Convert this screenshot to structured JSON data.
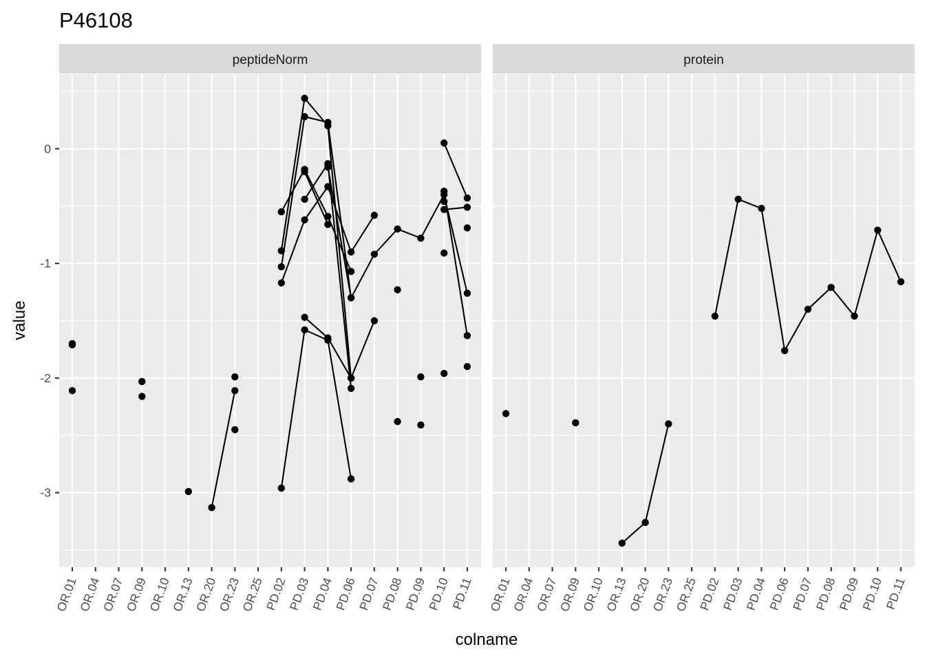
{
  "chart_data": {
    "type": "line",
    "title": "P46108",
    "xlabel": "colname",
    "ylabel": "value",
    "categories": [
      "OR.01",
      "OR.04",
      "OR.07",
      "OR.09",
      "OR.10",
      "OR.13",
      "OR.20",
      "OR.23",
      "OR.25",
      "PD.02",
      "PD.03",
      "PD.04",
      "PD.06",
      "PD.07",
      "PD.08",
      "PD.09",
      "PD.10",
      "PD.11"
    ],
    "yticks": [
      0,
      -1,
      -2,
      -3
    ],
    "ylim": [
      -3.65,
      0.65
    ],
    "grid": true,
    "facets": [
      {
        "name": "peptideNorm",
        "lines": [
          [
            [
              "PD.02",
              -0.55
            ],
            [
              "PD.03",
              -0.18
            ],
            [
              "PD.04",
              -0.59
            ],
            [
              "PD.06",
              -1.07
            ]
          ],
          [
            [
              "PD.02",
              -0.89
            ],
            [
              "PD.03",
              0.44
            ],
            [
              "PD.04",
              0.2
            ],
            [
              "PD.06",
              -2.0
            ]
          ],
          [
            [
              "PD.02",
              -1.03
            ],
            [
              "PD.03",
              0.28
            ],
            [
              "PD.04",
              0.23
            ],
            [
              "PD.06",
              -1.3
            ],
            [
              "PD.07",
              -0.92
            ],
            [
              "PD.08",
              -0.7
            ],
            [
              "PD.09",
              -0.78
            ],
            [
              "PD.10",
              -0.4
            ],
            [
              "PD.11",
              -1.26
            ]
          ],
          [
            [
              "PD.02",
              -1.17
            ],
            [
              "PD.03",
              -0.62
            ],
            [
              "PD.04",
              -0.33
            ],
            [
              "PD.06",
              -0.9
            ],
            [
              "PD.07",
              -0.58
            ]
          ],
          [
            [
              "PD.02",
              -2.96
            ],
            [
              "PD.03",
              -1.58
            ],
            [
              "PD.04",
              -1.67
            ],
            [
              "PD.06",
              -2.88
            ]
          ],
          [
            [
              "PD.03",
              -1.47
            ],
            [
              "PD.04",
              -1.65
            ],
            [
              "PD.06",
              -2.0
            ],
            [
              "PD.07",
              -1.5
            ]
          ],
          [
            [
              "PD.03",
              -0.44
            ],
            [
              "PD.04",
              -0.13
            ],
            [
              "PD.06",
              -2.09
            ]
          ],
          [
            [
              "PD.03",
              -0.2
            ],
            [
              "PD.04",
              -0.66
            ]
          ],
          [
            [
              "PD.04",
              -0.16
            ],
            [
              "PD.06",
              -1.3
            ]
          ],
          [
            [
              "OR.20",
              -3.13
            ],
            [
              "OR.23",
              -2.11
            ]
          ],
          [
            [
              "PD.10",
              0.05
            ],
            [
              "PD.11",
              -0.43
            ]
          ],
          [
            [
              "PD.10",
              -0.37
            ],
            [
              "PD.11",
              -1.63
            ]
          ],
          [
            [
              "PD.10",
              -0.53
            ],
            [
              "PD.11",
              -0.51
            ]
          ]
        ],
        "points": [
          [
            "OR.01",
            -1.7
          ],
          [
            "OR.01",
            -1.71
          ],
          [
            "OR.01",
            -2.11
          ],
          [
            "OR.09",
            -2.03
          ],
          [
            "OR.09",
            -2.16
          ],
          [
            "OR.13",
            -2.99
          ],
          [
            "OR.23",
            -1.99
          ],
          [
            "OR.23",
            -2.45
          ],
          [
            "PD.08",
            -1.23
          ],
          [
            "PD.08",
            -2.38
          ],
          [
            "PD.09",
            -1.99
          ],
          [
            "PD.09",
            -2.41
          ],
          [
            "PD.10",
            -0.46
          ],
          [
            "PD.10",
            -0.91
          ],
          [
            "PD.10",
            -1.96
          ],
          [
            "PD.11",
            -0.69
          ],
          [
            "PD.11",
            -1.9
          ]
        ]
      },
      {
        "name": "protein",
        "lines": [
          [
            [
              "OR.13",
              -3.44
            ],
            [
              "OR.20",
              -3.26
            ],
            [
              "OR.23",
              -2.4
            ]
          ],
          [
            [
              "PD.02",
              -1.46
            ],
            [
              "PD.03",
              -0.44
            ],
            [
              "PD.04",
              -0.52
            ],
            [
              "PD.06",
              -1.76
            ],
            [
              "PD.07",
              -1.4
            ],
            [
              "PD.08",
              -1.21
            ],
            [
              "PD.09",
              -1.46
            ],
            [
              "PD.10",
              -0.71
            ],
            [
              "PD.11",
              -1.16
            ]
          ]
        ],
        "points": [
          [
            "OR.01",
            -2.31
          ],
          [
            "OR.09",
            -2.39
          ]
        ]
      }
    ]
  }
}
